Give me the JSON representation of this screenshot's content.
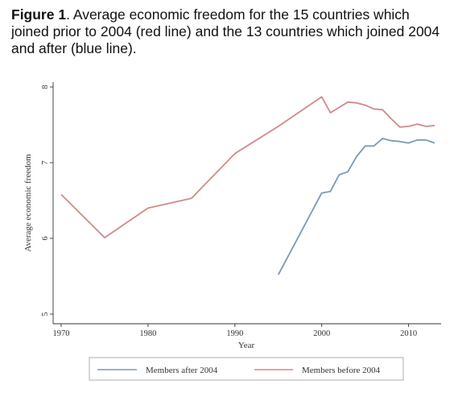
{
  "caption": {
    "label": "Figure 1",
    "text": ". Average economic freedom for the 15 countries which joined prior to 2004 (red line) and the 13 countries which joined 2004 and after (blue line)."
  },
  "chart_data": {
    "type": "line",
    "title": "",
    "xlabel": "Year",
    "ylabel": "Average economic freedom",
    "xlim": [
      1970,
      2013
    ],
    "ylim": [
      5,
      8
    ],
    "xticks": [
      1970,
      1980,
      1990,
      2000,
      2010
    ],
    "yticks": [
      5,
      6,
      7,
      8
    ],
    "grid": false,
    "legend_position": "bottom",
    "series": [
      {
        "name": "Members after 2004",
        "color": "#7a9ab8",
        "x": [
          1995,
          2000,
          2001,
          2002,
          2003,
          2004,
          2005,
          2006,
          2007,
          2008,
          2009,
          2010,
          2011,
          2012,
          2013
        ],
        "y": [
          5.52,
          6.6,
          6.62,
          6.84,
          6.88,
          7.08,
          7.22,
          7.22,
          7.32,
          7.29,
          7.28,
          7.26,
          7.3,
          7.3,
          7.26
        ]
      },
      {
        "name": "Members before 2004",
        "color": "#d08a8a",
        "x": [
          1970,
          1975,
          1980,
          1985,
          1990,
          1995,
          2000,
          2001,
          2002,
          2003,
          2004,
          2005,
          2006,
          2007,
          2008,
          2009,
          2010,
          2011,
          2012,
          2013
        ],
        "y": [
          6.58,
          6.01,
          6.4,
          6.53,
          7.12,
          7.48,
          7.87,
          7.66,
          7.73,
          7.8,
          7.79,
          7.76,
          7.71,
          7.7,
          7.58,
          7.47,
          7.48,
          7.51,
          7.48,
          7.49
        ]
      }
    ]
  }
}
